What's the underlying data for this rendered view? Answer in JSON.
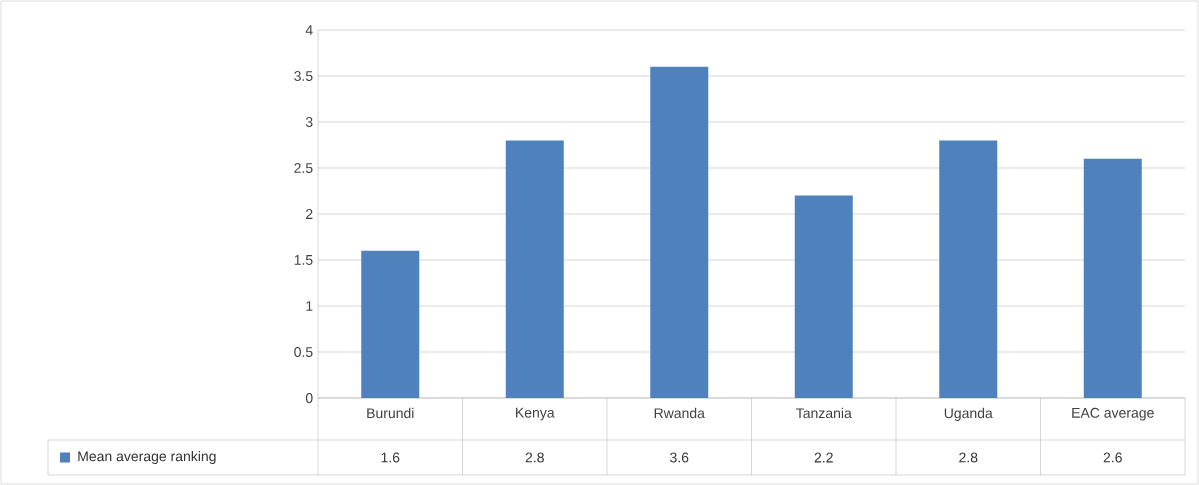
{
  "chart_data": {
    "type": "bar",
    "categories": [
      "Burundi",
      "Kenya",
      "Rwanda",
      "Tanzania",
      "Uganda",
      "EAC average"
    ],
    "series": [
      {
        "name": "Mean average ranking",
        "color": "#4f81bd",
        "values": [
          1.6,
          2.8,
          3.6,
          2.2,
          2.8,
          2.6
        ]
      }
    ],
    "ylim": [
      0,
      4
    ],
    "yticks": [
      0,
      0.5,
      1,
      1.5,
      2,
      2.5,
      3,
      3.5,
      4
    ],
    "grid": "y",
    "legend": "bottom",
    "data_labels": true
  }
}
